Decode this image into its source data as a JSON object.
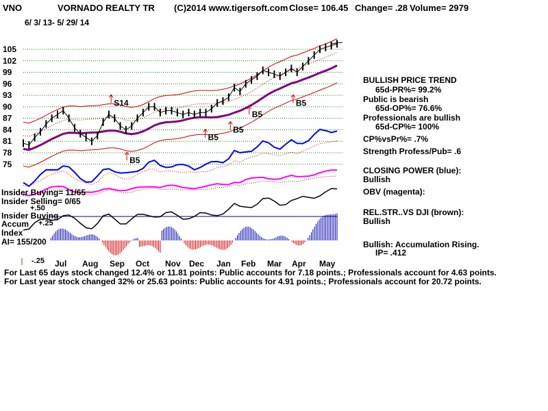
{
  "header": {
    "ticker": "VNO",
    "company": "VORNADO REALTY TR",
    "copyright": "(C)2014 www.tigersoft.com",
    "close": "Close=  106.45",
    "change": "Change= .28",
    "volume": "Volume= 2979",
    "date_range": "6/ 3/ 13- 5/ 29/ 14"
  },
  "right_panel": {
    "trend_title": "BULLISH PRICE TREND",
    "trend_value": "65d-PR%= 99.2%",
    "public_title": "Public is bearish",
    "public_value": "65d-OP%= 76.6%",
    "prof_title": "Professionals are bullish",
    "prof_value": "65d-CP%= 100%",
    "cp_vs_pr": "CP%vsPr%= .7%",
    "strength": "Strength Profess/Pub= .6",
    "closing_power": "CLOSING POWER (blue):",
    "closing_power_value": "Bullish",
    "obv": "OBV (magenta):",
    "relstr": "REL.STR..VS DJI (brown):",
    "relstr_value": "Bullish",
    "accum": "Bullish: Accumulation Rising.",
    "ip": "IP=  .412"
  },
  "indicator_labels": {
    "insider_buying": "Insider Buying= 11/65",
    "insider_selling": "Insider Selling= 0/65",
    "ai_title1": "Insider Buying",
    "ai_title2": "Accum",
    "ai_title3": "Index",
    "ai_value": "AI= 155/200",
    "plus50": "+.50",
    "plus25": "+.25",
    "minus25": "-.25"
  },
  "footer": {
    "line1": "For Last 65 days stock changed  12.4% or  11.81 points:  Public accounts for  7.18 points.;  Professionals account for  4.63 points.",
    "line2": "For Last year stock changed  32% or  25.63 points:  Public accounts for  4.91 points.;  Professionals account for  20.72 points."
  },
  "colors": {
    "price": "#000000",
    "bands": "#cc0000",
    "ma": "#800080",
    "closing_power": "#0000ff",
    "obv": "#ff00ff",
    "relstr": "#000000",
    "grid": "#008000",
    "ai_pos": "#0000aa",
    "ai_neg": "#cc0000",
    "signal": "#cc0000"
  },
  "chart_data": {
    "type": "line",
    "title": "VORNADO REALTY TR",
    "y_ticks": [
      75,
      78,
      81,
      84,
      87,
      90,
      93,
      96,
      99,
      102,
      105
    ],
    "ylim": [
      73,
      110
    ],
    "month_labels": [
      "Jul",
      "Aug",
      "Sep",
      "Oct",
      "Nov",
      "Dec",
      "Jan",
      "Feb",
      "Mar",
      "Apr",
      "May"
    ],
    "price": [
      80.5,
      80,
      82,
      83.5,
      85.5,
      87,
      88,
      89,
      87,
      84.5,
      83,
      82,
      81,
      82.5,
      86,
      88,
      87,
      85,
      84,
      85,
      87,
      88.5,
      90,
      90,
      88.5,
      89,
      89,
      88.5,
      88,
      88.5,
      88,
      88.5,
      88.5,
      89.5,
      91,
      91.5,
      92.5,
      95,
      94,
      96,
      97,
      98,
      99.5,
      99,
      98.5,
      98,
      99,
      100,
      99,
      100.5,
      102,
      103.5,
      105,
      105.5,
      106,
      106.45
    ],
    "signals": [
      {
        "label": "S14",
        "price": 91
      },
      {
        "label": "B5",
        "price": 76
      },
      {
        "label": "B5",
        "price": 82
      },
      {
        "label": "B5",
        "price": 84
      },
      {
        "label": "B5",
        "price": 88
      },
      {
        "label": "B5",
        "price": 91
      }
    ]
  }
}
